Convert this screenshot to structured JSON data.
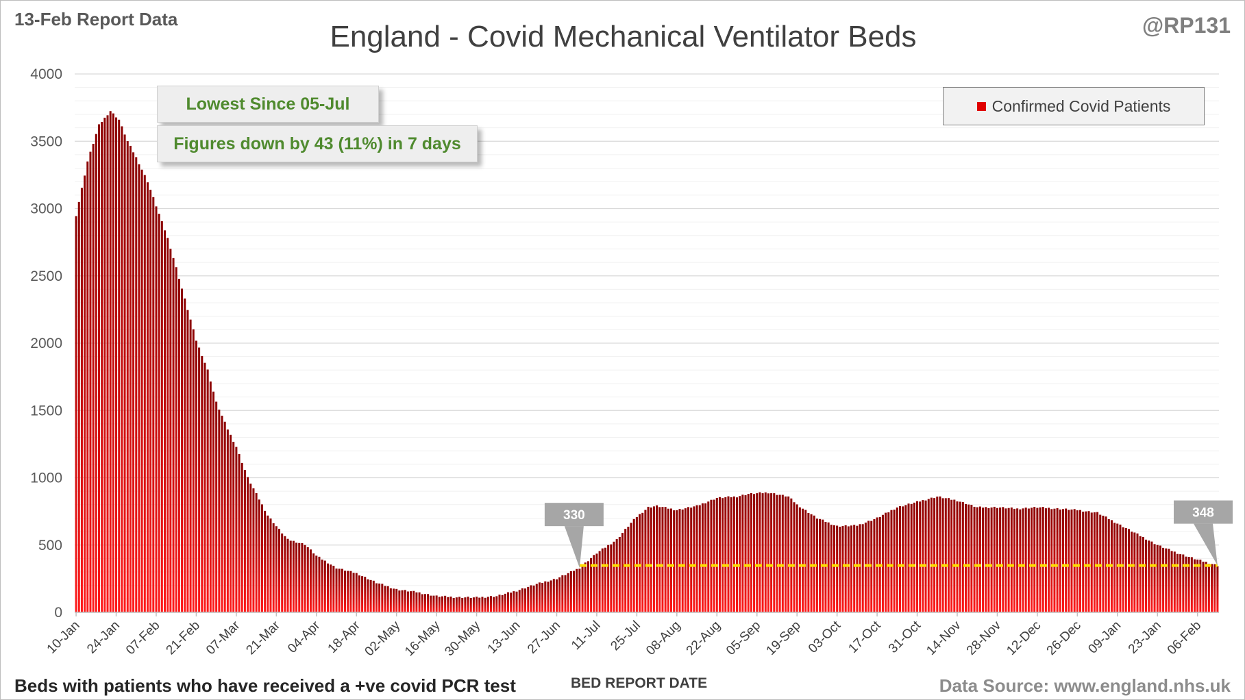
{
  "header": {
    "report_date": "13-Feb Report Data",
    "handle": "@RP131"
  },
  "callouts": {
    "lowest": "Lowest Since 05-Jul",
    "change": "Figures down by 43 (11%) in 7 days"
  },
  "footer": {
    "left_note": "Beds with patients who have received a +ve covid PCR test",
    "source": "Data Source: www.england.nhs.uk"
  },
  "colors": {
    "bar_top": "#8b0000",
    "bar_bottom": "#ff1a1a",
    "reference_line": "#ffdd00",
    "callout_text": "#4f8a2e",
    "marker_fill": "#a6a6a6"
  },
  "chart_data": {
    "type": "bar",
    "title": "England - Covid Mechanical Ventilator Beds",
    "xlabel": "BED REPORT DATE",
    "ylabel": "",
    "ylim": [
      0,
      4000
    ],
    "yticks": [
      0,
      500,
      1000,
      1500,
      2000,
      2500,
      3000,
      3500,
      4000
    ],
    "grid": true,
    "legend_position": "top-right",
    "x_tick_labels": [
      "10-Jan",
      "24-Jan",
      "07-Feb",
      "21-Feb",
      "07-Mar",
      "21-Mar",
      "04-Apr",
      "18-Apr",
      "02-May",
      "16-May",
      "30-May",
      "13-Jun",
      "27-Jun",
      "11-Jul",
      "25-Jul",
      "08-Aug",
      "22-Aug",
      "05-Sep",
      "19-Sep",
      "03-Oct",
      "17-Oct",
      "31-Oct",
      "14-Nov",
      "28-Nov",
      "12-Dec",
      "26-Dec",
      "09-Jan",
      "23-Jan",
      "06-Feb"
    ],
    "series": [
      {
        "name": "Confirmed Covid Patients",
        "color": "#e00000",
        "x_start": "10-Jan",
        "x_end": "13-Feb",
        "anchors": [
          {
            "date": "10-Jan",
            "value": 2950
          },
          {
            "date": "14-Jan",
            "value": 3350
          },
          {
            "date": "18-Jan",
            "value": 3620
          },
          {
            "date": "22-Jan",
            "value": 3725
          },
          {
            "date": "25-Jan",
            "value": 3660
          },
          {
            "date": "28-Jan",
            "value": 3500
          },
          {
            "date": "31-Jan",
            "value": 3380
          },
          {
            "date": "04-Feb",
            "value": 3200
          },
          {
            "date": "07-Feb",
            "value": 3020
          },
          {
            "date": "11-Feb",
            "value": 2780
          },
          {
            "date": "14-Feb",
            "value": 2560
          },
          {
            "date": "18-Feb",
            "value": 2250
          },
          {
            "date": "21-Feb",
            "value": 2020
          },
          {
            "date": "25-Feb",
            "value": 1800
          },
          {
            "date": "28-Feb",
            "value": 1560
          },
          {
            "date": "04-Mar",
            "value": 1360
          },
          {
            "date": "07-Mar",
            "value": 1230
          },
          {
            "date": "11-Mar",
            "value": 1000
          },
          {
            "date": "14-Mar",
            "value": 880
          },
          {
            "date": "18-Mar",
            "value": 720
          },
          {
            "date": "21-Mar",
            "value": 640
          },
          {
            "date": "25-Mar",
            "value": 540
          },
          {
            "date": "31-Mar",
            "value": 505
          },
          {
            "date": "04-Apr",
            "value": 420
          },
          {
            "date": "11-Apr",
            "value": 330
          },
          {
            "date": "18-Apr",
            "value": 290
          },
          {
            "date": "25-Apr",
            "value": 220
          },
          {
            "date": "02-May",
            "value": 170
          },
          {
            "date": "09-May",
            "value": 150
          },
          {
            "date": "16-May",
            "value": 120
          },
          {
            "date": "23-May",
            "value": 112
          },
          {
            "date": "30-May",
            "value": 110
          },
          {
            "date": "06-Jun",
            "value": 120
          },
          {
            "date": "13-Jun",
            "value": 160
          },
          {
            "date": "20-Jun",
            "value": 210
          },
          {
            "date": "27-Jun",
            "value": 250
          },
          {
            "date": "01-Jul",
            "value": 290
          },
          {
            "date": "05-Jul",
            "value": 330
          },
          {
            "date": "11-Jul",
            "value": 440
          },
          {
            "date": "18-Jul",
            "value": 540
          },
          {
            "date": "22-Jul",
            "value": 640
          },
          {
            "date": "25-Jul",
            "value": 710
          },
          {
            "date": "29-Jul",
            "value": 780
          },
          {
            "date": "01-Aug",
            "value": 790
          },
          {
            "date": "08-Aug",
            "value": 760
          },
          {
            "date": "15-Aug",
            "value": 790
          },
          {
            "date": "22-Aug",
            "value": 850
          },
          {
            "date": "29-Aug",
            "value": 860
          },
          {
            "date": "02-Sep",
            "value": 880
          },
          {
            "date": "09-Sep",
            "value": 890
          },
          {
            "date": "16-Sep",
            "value": 860
          },
          {
            "date": "19-Sep",
            "value": 800
          },
          {
            "date": "26-Sep",
            "value": 700
          },
          {
            "date": "03-Oct",
            "value": 640
          },
          {
            "date": "10-Oct",
            "value": 645
          },
          {
            "date": "17-Oct",
            "value": 700
          },
          {
            "date": "24-Oct",
            "value": 780
          },
          {
            "date": "31-Oct",
            "value": 820
          },
          {
            "date": "07-Nov",
            "value": 860
          },
          {
            "date": "14-Nov",
            "value": 830
          },
          {
            "date": "21-Nov",
            "value": 780
          },
          {
            "date": "28-Nov",
            "value": 780
          },
          {
            "date": "05-Dec",
            "value": 770
          },
          {
            "date": "12-Dec",
            "value": 780
          },
          {
            "date": "19-Dec",
            "value": 770
          },
          {
            "date": "26-Dec",
            "value": 760
          },
          {
            "date": "02-Jan",
            "value": 740
          },
          {
            "date": "09-Jan",
            "value": 660
          },
          {
            "date": "16-Jan",
            "value": 580
          },
          {
            "date": "23-Jan",
            "value": 500
          },
          {
            "date": "30-Jan",
            "value": 440
          },
          {
            "date": "06-Feb",
            "value": 391
          },
          {
            "date": "13-Feb",
            "value": 348
          }
        ]
      }
    ],
    "reference_line": {
      "value": 348,
      "from": "05-Jul",
      "to": "13-Feb"
    },
    "annotations": [
      {
        "label": "330",
        "date": "05-Jul",
        "value": 330
      },
      {
        "label": "348",
        "date": "13-Feb",
        "value": 348
      }
    ]
  }
}
